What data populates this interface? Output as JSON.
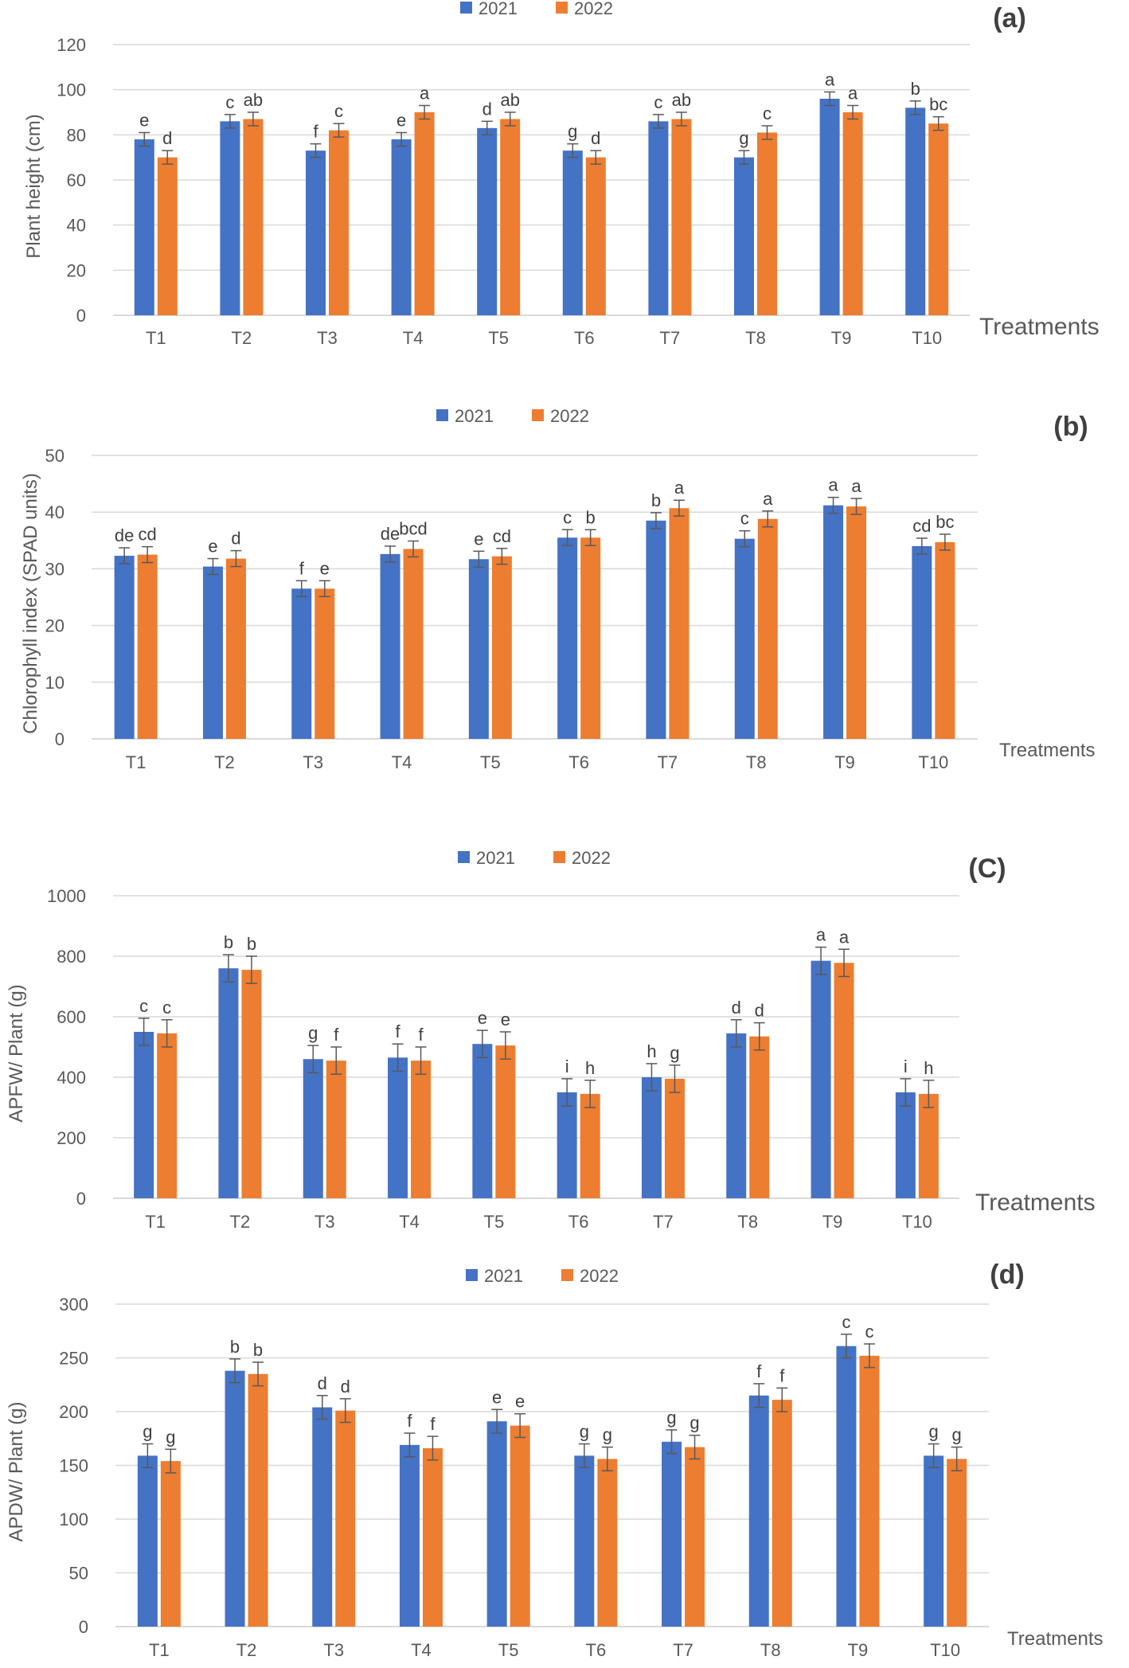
{
  "colors": {
    "s2021": "#4472C4",
    "s2022": "#ED7D31",
    "grid": "#D9D9D9",
    "text": "#595959",
    "err": "#595959"
  },
  "chart_data": [
    {
      "type": "bar",
      "panel_label": "(a)",
      "ylabel": "Plant height (cm)",
      "xlabel": "Treatments",
      "ylim": [
        0,
        120
      ],
      "yticks": [
        0,
        20,
        40,
        60,
        80,
        100,
        120
      ],
      "legend": {
        "position": "top-center",
        "entries": [
          "2021",
          "2022"
        ]
      },
      "categories": [
        "T1",
        "T2",
        "T3",
        "T4",
        "T5",
        "T6",
        "T7",
        "T8",
        "T9",
        "T10"
      ],
      "series": [
        {
          "name": "2021",
          "values": [
            78,
            86,
            73,
            78,
            83,
            73,
            86,
            70,
            96,
            92
          ],
          "errors": [
            3,
            3,
            3,
            3,
            3,
            3,
            3,
            3,
            3,
            3
          ],
          "letters": [
            "e",
            "c",
            "f",
            "e",
            "d",
            "g",
            "c",
            "g",
            "a",
            "b"
          ]
        },
        {
          "name": "2022",
          "values": [
            70,
            87,
            82,
            90,
            87,
            70,
            87,
            81,
            90,
            85
          ],
          "errors": [
            3,
            3,
            3,
            3,
            3,
            3,
            3,
            3,
            3,
            3
          ],
          "letters": [
            "d",
            "ab",
            "c",
            "a",
            "ab",
            "d",
            "ab",
            "c",
            "a",
            "bc"
          ]
        }
      ]
    },
    {
      "type": "bar",
      "panel_label": "(b)",
      "ylabel": "Chlorophyll index (SPAD units)",
      "xlabel": "Treatments",
      "ylim": [
        0,
        50
      ],
      "yticks": [
        0,
        10,
        20,
        30,
        40,
        50
      ],
      "legend": {
        "position": "top-center",
        "entries": [
          "2021",
          "2022"
        ]
      },
      "categories": [
        "T1",
        "T2",
        "T3",
        "T4",
        "T5",
        "T6",
        "T7",
        "T8",
        "T9",
        "T10"
      ],
      "series": [
        {
          "name": "2021",
          "values": [
            32.3,
            30.4,
            26.5,
            32.6,
            31.7,
            35.5,
            38.5,
            35.3,
            41.2,
            34.0
          ],
          "errors": [
            1.4,
            1.4,
            1.4,
            1.4,
            1.4,
            1.4,
            1.4,
            1.4,
            1.4,
            1.4
          ],
          "letters": [
            "de",
            "e",
            "f",
            "de",
            "e",
            "c",
            "b",
            "c",
            "a",
            "cd"
          ]
        },
        {
          "name": "2022",
          "values": [
            32.5,
            31.8,
            26.5,
            33.5,
            32.2,
            35.5,
            40.7,
            38.8,
            41.0,
            34.7
          ],
          "errors": [
            1.4,
            1.4,
            1.4,
            1.4,
            1.4,
            1.4,
            1.4,
            1.4,
            1.4,
            1.4
          ],
          "letters": [
            "cd",
            "d",
            "e",
            "bcd",
            "cd",
            "b",
            "a",
            "a",
            "a",
            "bc"
          ]
        }
      ]
    },
    {
      "type": "bar",
      "panel_label": "(C)",
      "ylabel": "APFW/ Plant (g)",
      "xlabel": "Treatments",
      "ylim": [
        0,
        1000
      ],
      "yticks": [
        0,
        200,
        400,
        600,
        800,
        1000
      ],
      "legend": {
        "position": "top-center",
        "entries": [
          "2021",
          "2022"
        ]
      },
      "categories": [
        "T1",
        "T2",
        "T3",
        "T4",
        "T5",
        "T6",
        "T7",
        "T8",
        "T9",
        "T10"
      ],
      "series": [
        {
          "name": "2021",
          "values": [
            550,
            760,
            460,
            465,
            510,
            350,
            400,
            545,
            785,
            350
          ],
          "errors": [
            45,
            45,
            45,
            45,
            45,
            45,
            45,
            45,
            45,
            45
          ],
          "letters": [
            "c",
            "b",
            "g",
            "f",
            "e",
            "i",
            "h",
            "d",
            "a",
            "i"
          ]
        },
        {
          "name": "2022",
          "values": [
            545,
            755,
            455,
            455,
            505,
            345,
            395,
            535,
            778,
            345
          ],
          "errors": [
            45,
            45,
            45,
            45,
            45,
            45,
            45,
            45,
            45,
            45
          ],
          "letters": [
            "c",
            "b",
            "f",
            "f",
            "e",
            "h",
            "g",
            "d",
            "a",
            "h"
          ]
        }
      ]
    },
    {
      "type": "bar",
      "panel_label": "(d)",
      "ylabel": "APDW/ Plant (g)",
      "xlabel": "Treatments",
      "ylim": [
        0,
        300
      ],
      "yticks": [
        0,
        50,
        100,
        150,
        200,
        250,
        300
      ],
      "legend": {
        "position": "top-center",
        "entries": [
          "2021",
          "2022"
        ]
      },
      "categories": [
        "T1",
        "T2",
        "T3",
        "T4",
        "T5",
        "T6",
        "T7",
        "T8",
        "T9",
        "T10"
      ],
      "series": [
        {
          "name": "2021",
          "values": [
            159,
            238,
            204,
            169,
            191,
            159,
            172,
            215,
            261,
            159
          ],
          "errors": [
            11,
            11,
            11,
            11,
            11,
            11,
            11,
            11,
            11,
            11
          ],
          "letters": [
            "g",
            "b",
            "d",
            "f",
            "e",
            "g",
            "g",
            "f",
            "c",
            "g"
          ]
        },
        {
          "name": "2022",
          "values": [
            154,
            235,
            201,
            166,
            187,
            156,
            167,
            211,
            252,
            156
          ],
          "errors": [
            11,
            11,
            11,
            11,
            11,
            11,
            11,
            11,
            11,
            11
          ],
          "letters": [
            "g",
            "b",
            "d",
            "f",
            "e",
            "g",
            "g",
            "f",
            "c",
            "g"
          ]
        }
      ]
    }
  ]
}
